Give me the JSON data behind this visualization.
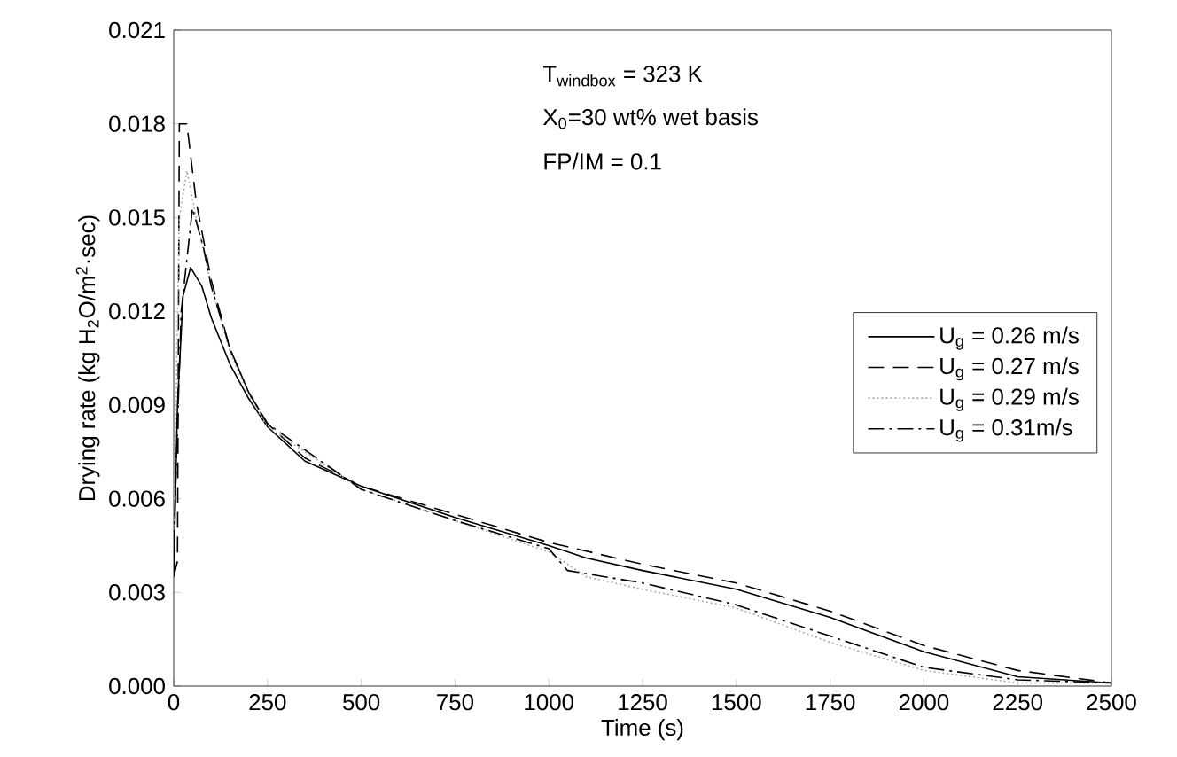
{
  "chart_data": {
    "type": "line",
    "xlabel": "Time (s)",
    "ylabel": "Drying rate  (kg H$_{2}$O/m$^{2}$·sec)",
    "annotations": [
      "T$_{windbox}$ = 323 K",
      "X$_{0}$=30 wt% wet basis",
      "FP/IM = 0.1"
    ],
    "xlim": [
      0,
      2500
    ],
    "xticks": [
      0,
      250,
      500,
      750,
      1000,
      1250,
      1500,
      1750,
      2000,
      2250,
      2500
    ],
    "ylim": [
      0,
      0.021
    ],
    "yticks": [
      {
        "value": 0,
        "label": "0.000"
      },
      0.003,
      0.006,
      0.009,
      0.012,
      0.015,
      0.018,
      0.021
    ],
    "grid": false,
    "legend": "right",
    "marker": "none",
    "series": [
      {
        "name": "U$_{g}$ = 0.26 m/s",
        "color": "#000000",
        "line_style": "solid",
        "x": [
          0,
          10,
          25,
          45,
          75,
          100,
          150,
          200,
          250,
          350,
          500,
          750,
          1000,
          1100,
          1250,
          1500,
          1750,
          2000,
          2250,
          2500
        ],
        "values": [
          0.0035,
          0.009,
          0.0125,
          0.0134,
          0.0128,
          0.0118,
          0.0103,
          0.0092,
          0.0083,
          0.0072,
          0.0064,
          0.0054,
          0.0045,
          0.0041,
          0.0037,
          0.0031,
          0.0022,
          0.0011,
          0.0003,
          0.0001
        ]
      },
      {
        "name": "U$_{g}$ = 0.27 m/s",
        "color": "#000000",
        "line_style": "dashed",
        "x": [
          0,
          10,
          15,
          35,
          60,
          100,
          150,
          200,
          250,
          350,
          500,
          750,
          1000,
          1250,
          1500,
          1750,
          2000,
          2250,
          2500
        ],
        "values": [
          0.0035,
          0.004,
          0.018,
          0.018,
          0.0155,
          0.013,
          0.0108,
          0.0094,
          0.0084,
          0.0073,
          0.0064,
          0.0055,
          0.0046,
          0.0039,
          0.0033,
          0.0024,
          0.0013,
          0.0005,
          0.0001
        ]
      },
      {
        "name": "U$_{g}$ = 0.29 m/s",
        "color": "#aaaaaa",
        "line_style": "dotted",
        "x": [
          0,
          15,
          35,
          60,
          100,
          150,
          200,
          250,
          500,
          750,
          1000,
          1100,
          1250,
          1500,
          1750,
          2000,
          2250,
          2500
        ],
        "values": [
          0.005,
          0.015,
          0.0165,
          0.015,
          0.0128,
          0.0107,
          0.0093,
          0.0083,
          0.0063,
          0.0053,
          0.0043,
          0.0035,
          0.0031,
          0.0025,
          0.0014,
          0.0005,
          0.0001,
          0.0001
        ]
      },
      {
        "name": "U$_{g}$ = 0.31m/s",
        "color": "#000000",
        "line_style": "dashdot",
        "x": [
          0,
          20,
          50,
          80,
          100,
          150,
          200,
          250,
          500,
          750,
          1000,
          1050,
          1250,
          1500,
          1750,
          2000,
          2250,
          2500
        ],
        "values": [
          0.0045,
          0.012,
          0.0153,
          0.014,
          0.0128,
          0.0108,
          0.0094,
          0.0084,
          0.0063,
          0.0053,
          0.0044,
          0.0037,
          0.0033,
          0.0026,
          0.0016,
          0.0006,
          0.0002,
          0.0001
        ]
      }
    ]
  }
}
